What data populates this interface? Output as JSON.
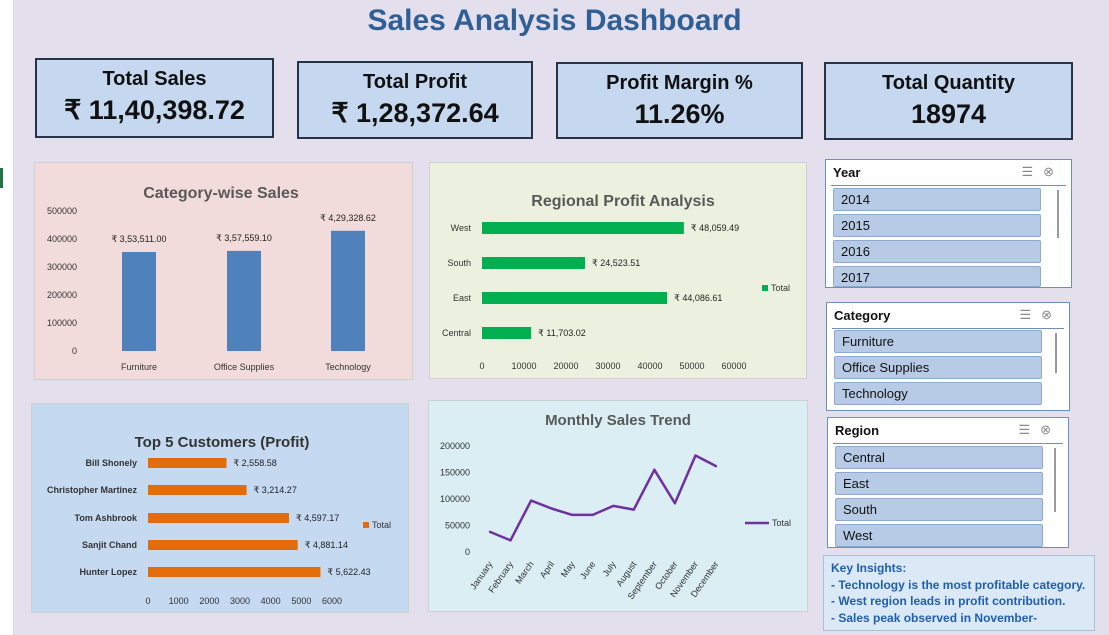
{
  "title": "Sales Analysis Dashboard",
  "kpis": [
    {
      "label": "Total Sales",
      "value": "₹ 11,40,398.72"
    },
    {
      "label": "Total Profit",
      "value": "₹ 1,28,372.64"
    },
    {
      "label": "Profit Margin %",
      "value": "11.26%"
    },
    {
      "label": "Total Quantity",
      "value": "18974"
    }
  ],
  "colors": {
    "accent_title": "#2f5f94",
    "category_bar": "#4f81bd",
    "region_bar": "#00b050",
    "customer_bar": "#e46c0a",
    "monthly_line": "#7030a0",
    "insight_text": "#1f5fb0"
  },
  "slicers": [
    {
      "title": "Year",
      "items": [
        "2014",
        "2015",
        "2016",
        "2017"
      ]
    },
    {
      "title": "Category",
      "items": [
        "Furniture",
        "Office Supplies",
        "Technology"
      ]
    },
    {
      "title": "Region",
      "items": [
        "Central",
        "East",
        "South",
        "West"
      ]
    }
  ],
  "slicer_icons": [
    "multi-select-icon",
    "clear-filter-icon"
  ],
  "insights": {
    "heading": "Key Insights:",
    "lines": [
      "- Technology is the most profitable category.",
      "- West region leads in profit contribution.",
      "- Sales peak observed in November-"
    ]
  },
  "chart_data": [
    {
      "type": "bar",
      "title": "Category-wise Sales",
      "categories": [
        "Furniture",
        "Office Supplies",
        "Technology"
      ],
      "values": [
        353511.0,
        357559.1,
        429328.62
      ],
      "data_labels": [
        "₹ 3,53,511.00",
        "₹ 3,57,559.10",
        "₹ 4,29,328.62"
      ],
      "yticks": [
        "0",
        "100000",
        "200000",
        "300000",
        "400000",
        "500000"
      ],
      "ylim": [
        0,
        500000
      ],
      "grid": false
    },
    {
      "type": "bar",
      "orientation": "horizontal",
      "title": "Regional Profit Analysis",
      "categories": [
        "West",
        "South",
        "East",
        "Central"
      ],
      "values": [
        48059.49,
        24523.51,
        44086.61,
        11703.02
      ],
      "data_labels": [
        "₹ 48,059.49",
        "₹ 24,523.51",
        "₹ 44,086.61",
        "₹ 11,703.02"
      ],
      "xticks": [
        "0",
        "10000",
        "20000",
        "30000",
        "40000",
        "50000",
        "60000"
      ],
      "xlim": [
        0,
        60000
      ],
      "legend": {
        "entries": [
          "Total"
        ],
        "position": "right"
      },
      "grid": false
    },
    {
      "type": "bar",
      "orientation": "horizontal",
      "title": "Top 5 Customers (Profit)",
      "categories": [
        "Bill Shonely",
        "Christopher Martinez",
        "Tom Ashbrook",
        "Sanjit Chand",
        "Hunter Lopez"
      ],
      "values": [
        2558.58,
        3214.27,
        4597.17,
        4881.14,
        5622.43
      ],
      "data_labels": [
        "₹ 2,558.58",
        "₹ 3,214.27",
        "₹ 4,597.17",
        "₹ 4,881.14",
        "₹ 5,622.43"
      ],
      "xticks": [
        "0",
        "1000",
        "2000",
        "3000",
        "4000",
        "5000",
        "6000"
      ],
      "xlim": [
        0,
        6000
      ],
      "legend": {
        "entries": [
          "Total"
        ],
        "position": "right"
      },
      "grid": false
    },
    {
      "type": "line",
      "title": "Monthly Sales Trend",
      "categories": [
        "January",
        "February",
        "March",
        "April",
        "May",
        "June",
        "July",
        "August",
        "September",
        "October",
        "November",
        "December"
      ],
      "values": [
        38000,
        22000,
        97000,
        82000,
        70000,
        70000,
        87000,
        80000,
        155000,
        92000,
        182000,
        162000
      ],
      "yticks": [
        "0",
        "50000",
        "100000",
        "150000",
        "200000"
      ],
      "ylim": [
        0,
        200000
      ],
      "legend": {
        "entries": [
          "Total"
        ],
        "position": "right"
      },
      "grid": false
    }
  ]
}
